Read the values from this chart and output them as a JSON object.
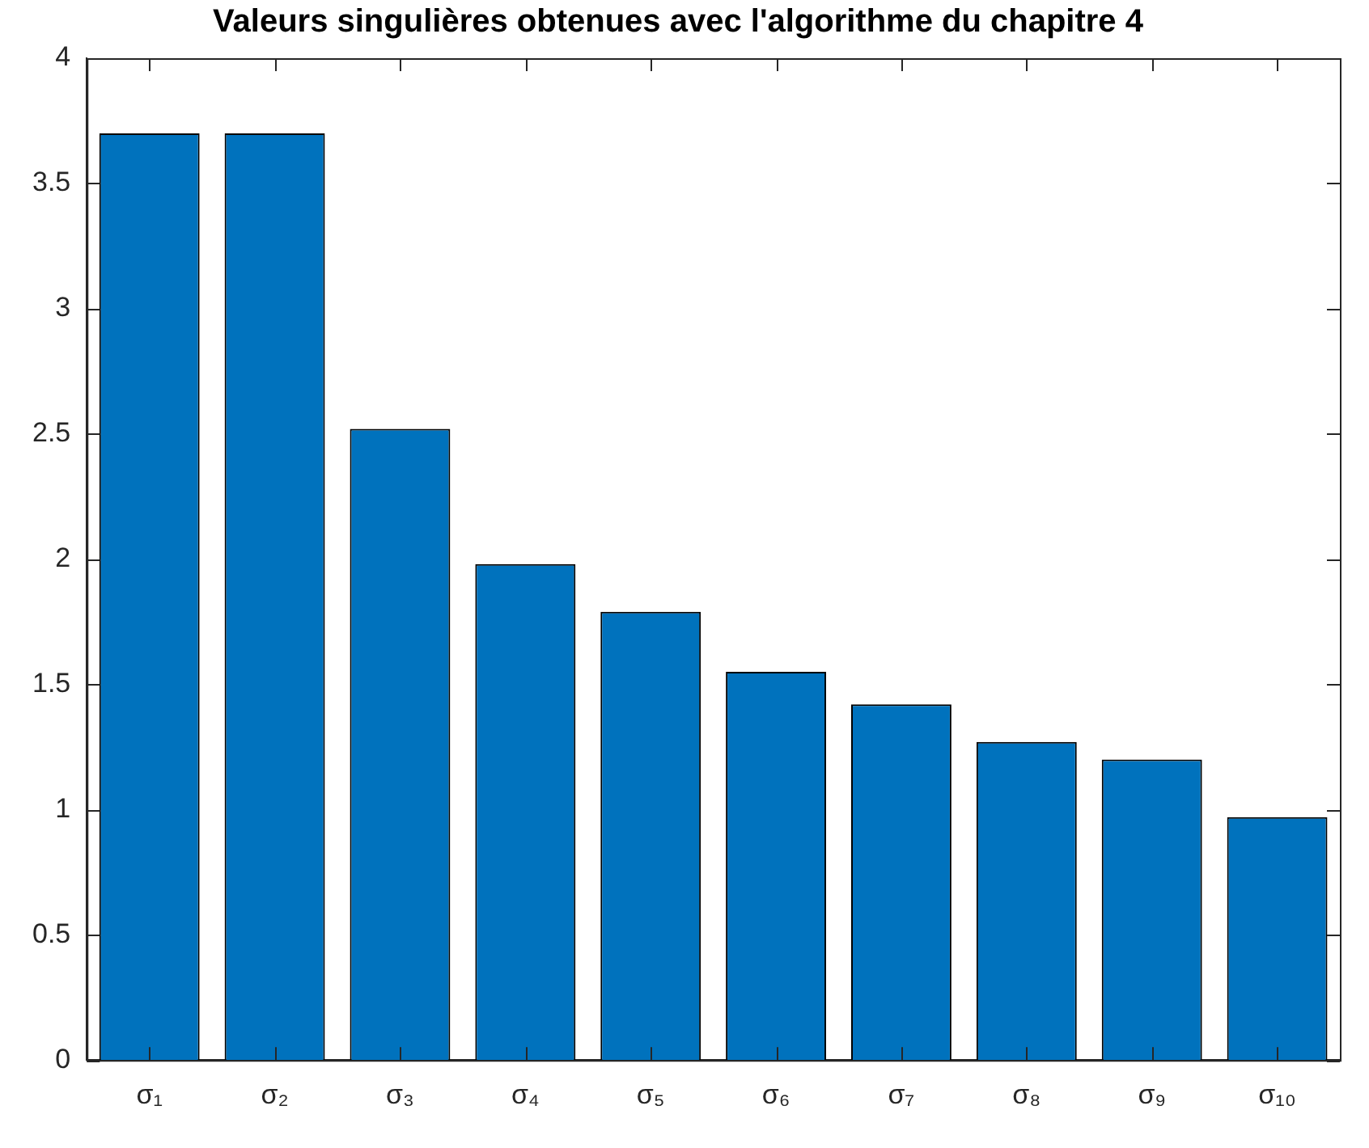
{
  "chart_data": {
    "type": "bar",
    "title": "Valeurs singulières obtenues avec l'algorithme du chapitre 4",
    "categories": [
      "σ₁",
      "σ₂",
      "σ₃",
      "σ₄",
      "σ₅",
      "σ₆",
      "σ₇",
      "σ₈",
      "σ₉",
      "σ₁₀"
    ],
    "values": [
      3.7,
      3.7,
      2.52,
      1.98,
      1.79,
      1.55,
      1.42,
      1.27,
      1.2,
      0.97
    ],
    "color": "#0072bd",
    "ylim": [
      0,
      4
    ],
    "yticks": [
      0,
      0.5,
      1,
      1.5,
      2,
      2.5,
      3,
      3.5,
      4
    ],
    "grid": false,
    "legend": false
  }
}
